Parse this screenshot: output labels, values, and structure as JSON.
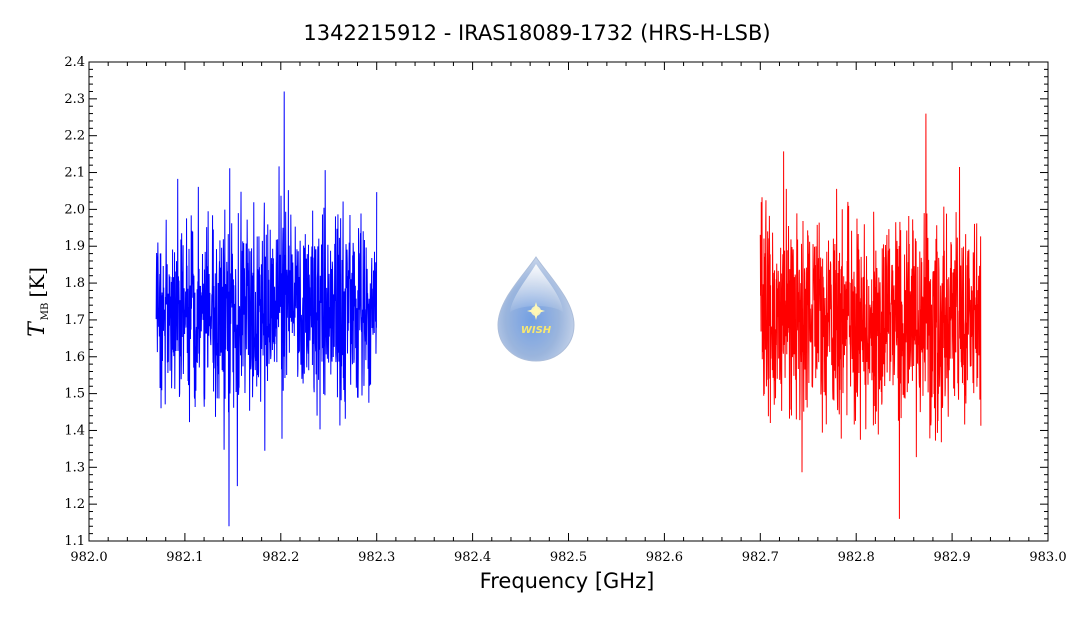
{
  "chart_data": {
    "type": "line",
    "title": "1342215912 - IRAS18089-1732 (HRS-H-LSB)",
    "xlabel": "Frequency [GHz]",
    "ylabel": {
      "symbol": "T",
      "subscript": "MB",
      "unit": "[K]"
    },
    "xlim": [
      982.0,
      983.0
    ],
    "ylim": [
      1.1,
      2.4
    ],
    "xticks": [
      "982.0",
      "982.1",
      "982.2",
      "982.3",
      "982.4",
      "982.5",
      "982.6",
      "982.7",
      "982.8",
      "982.9",
      "983.0"
    ],
    "yticks": [
      "1.1",
      "1.2",
      "1.3",
      "1.4",
      "1.5",
      "1.6",
      "1.7",
      "1.8",
      "1.9",
      "2.0",
      "2.1",
      "2.2",
      "2.3",
      "2.4"
    ],
    "grid": false,
    "logo_text": "WISH",
    "series": [
      {
        "color": "#0000ff",
        "x_range": [
          982.07,
          982.3
        ],
        "mean": 1.72,
        "noise_sigma": 0.13,
        "min": 1.14,
        "max": 2.32
      },
      {
        "color": "#ff0000",
        "x_range": [
          982.7,
          982.93
        ],
        "mean": 1.7,
        "noise_sigma": 0.14,
        "min": 1.16,
        "max": 2.26
      }
    ]
  }
}
